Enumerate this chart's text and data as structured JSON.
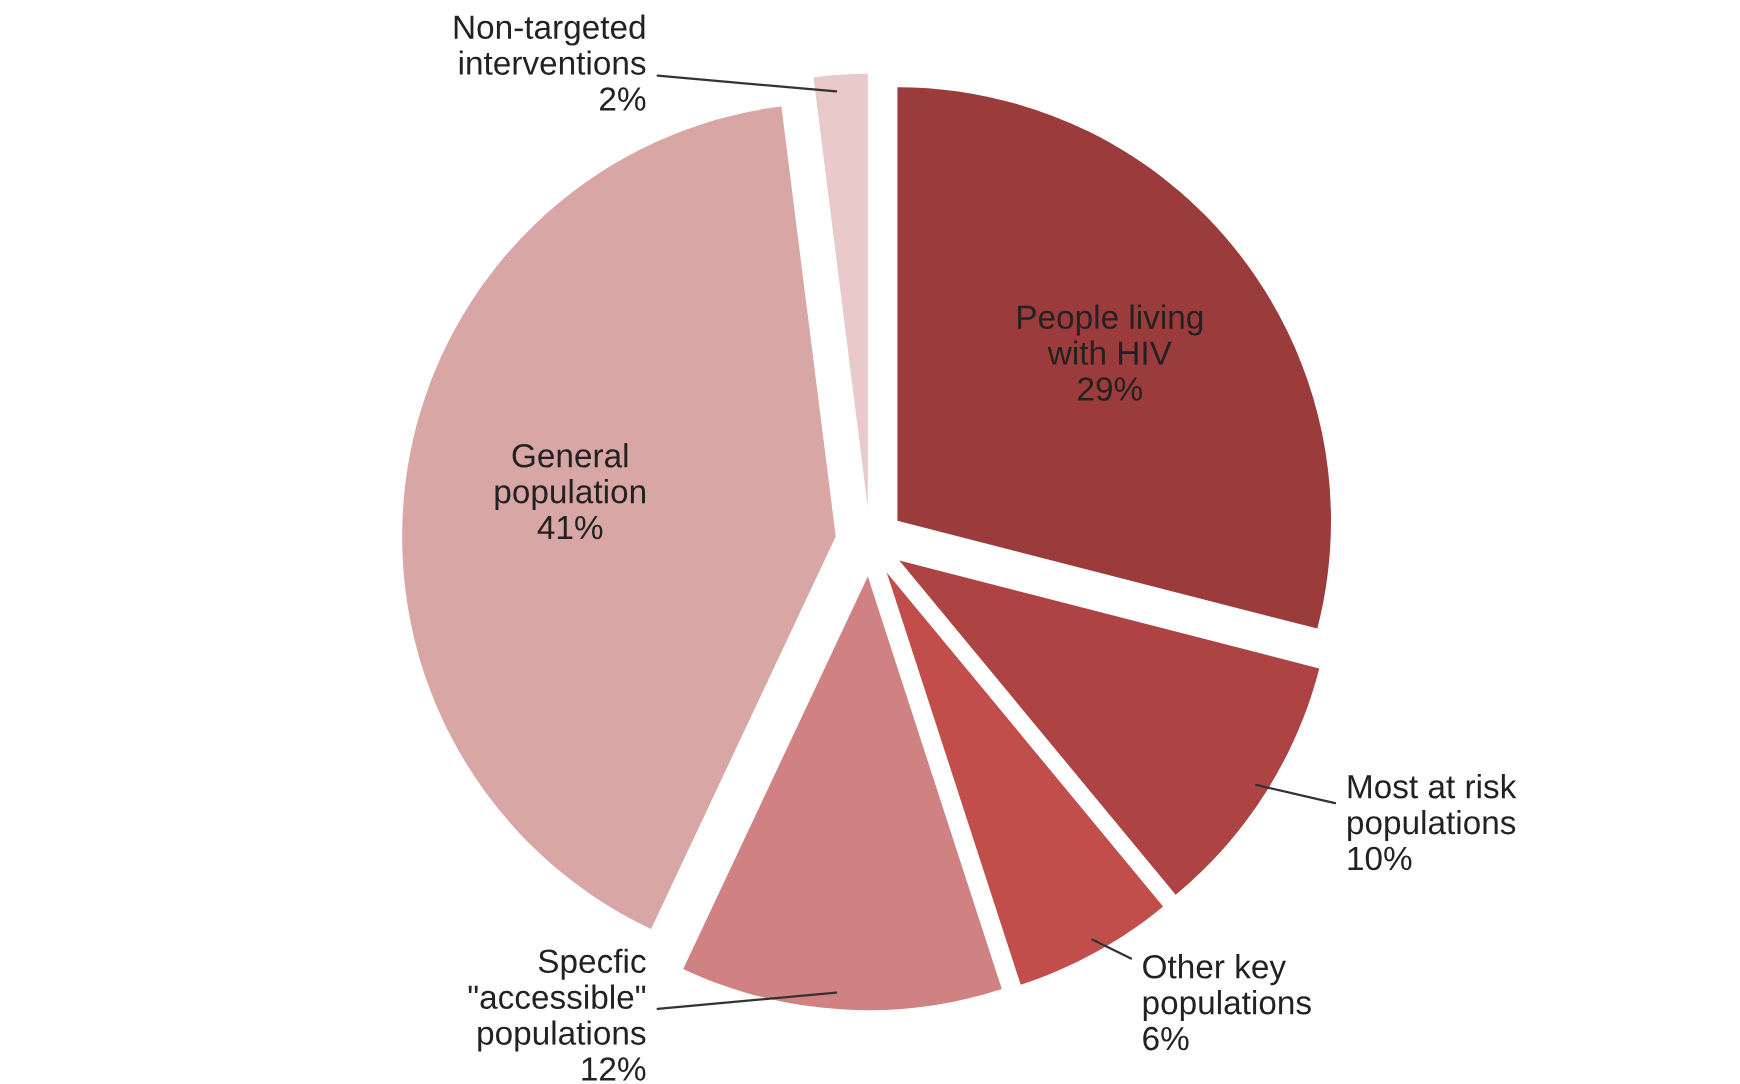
{
  "chart_data": {
    "type": "pie",
    "categories": [
      "People living\nwith HIV",
      "Most at risk\npopulations",
      "Other key\npopulations",
      "Specfic\n\"accessible\"\npopulations",
      "General\npopulation",
      "Non-targeted\ninterventions"
    ],
    "values": [
      29,
      10,
      6,
      12,
      41,
      2
    ],
    "value_labels": [
      "29%",
      "10%",
      "6%",
      "12%",
      "41%",
      "2%"
    ],
    "colors": [
      "#9c3b3b",
      "#ad4343",
      "#c24e4c",
      "#d08282",
      "#d9a6a6",
      "#e9c9c9"
    ]
  }
}
